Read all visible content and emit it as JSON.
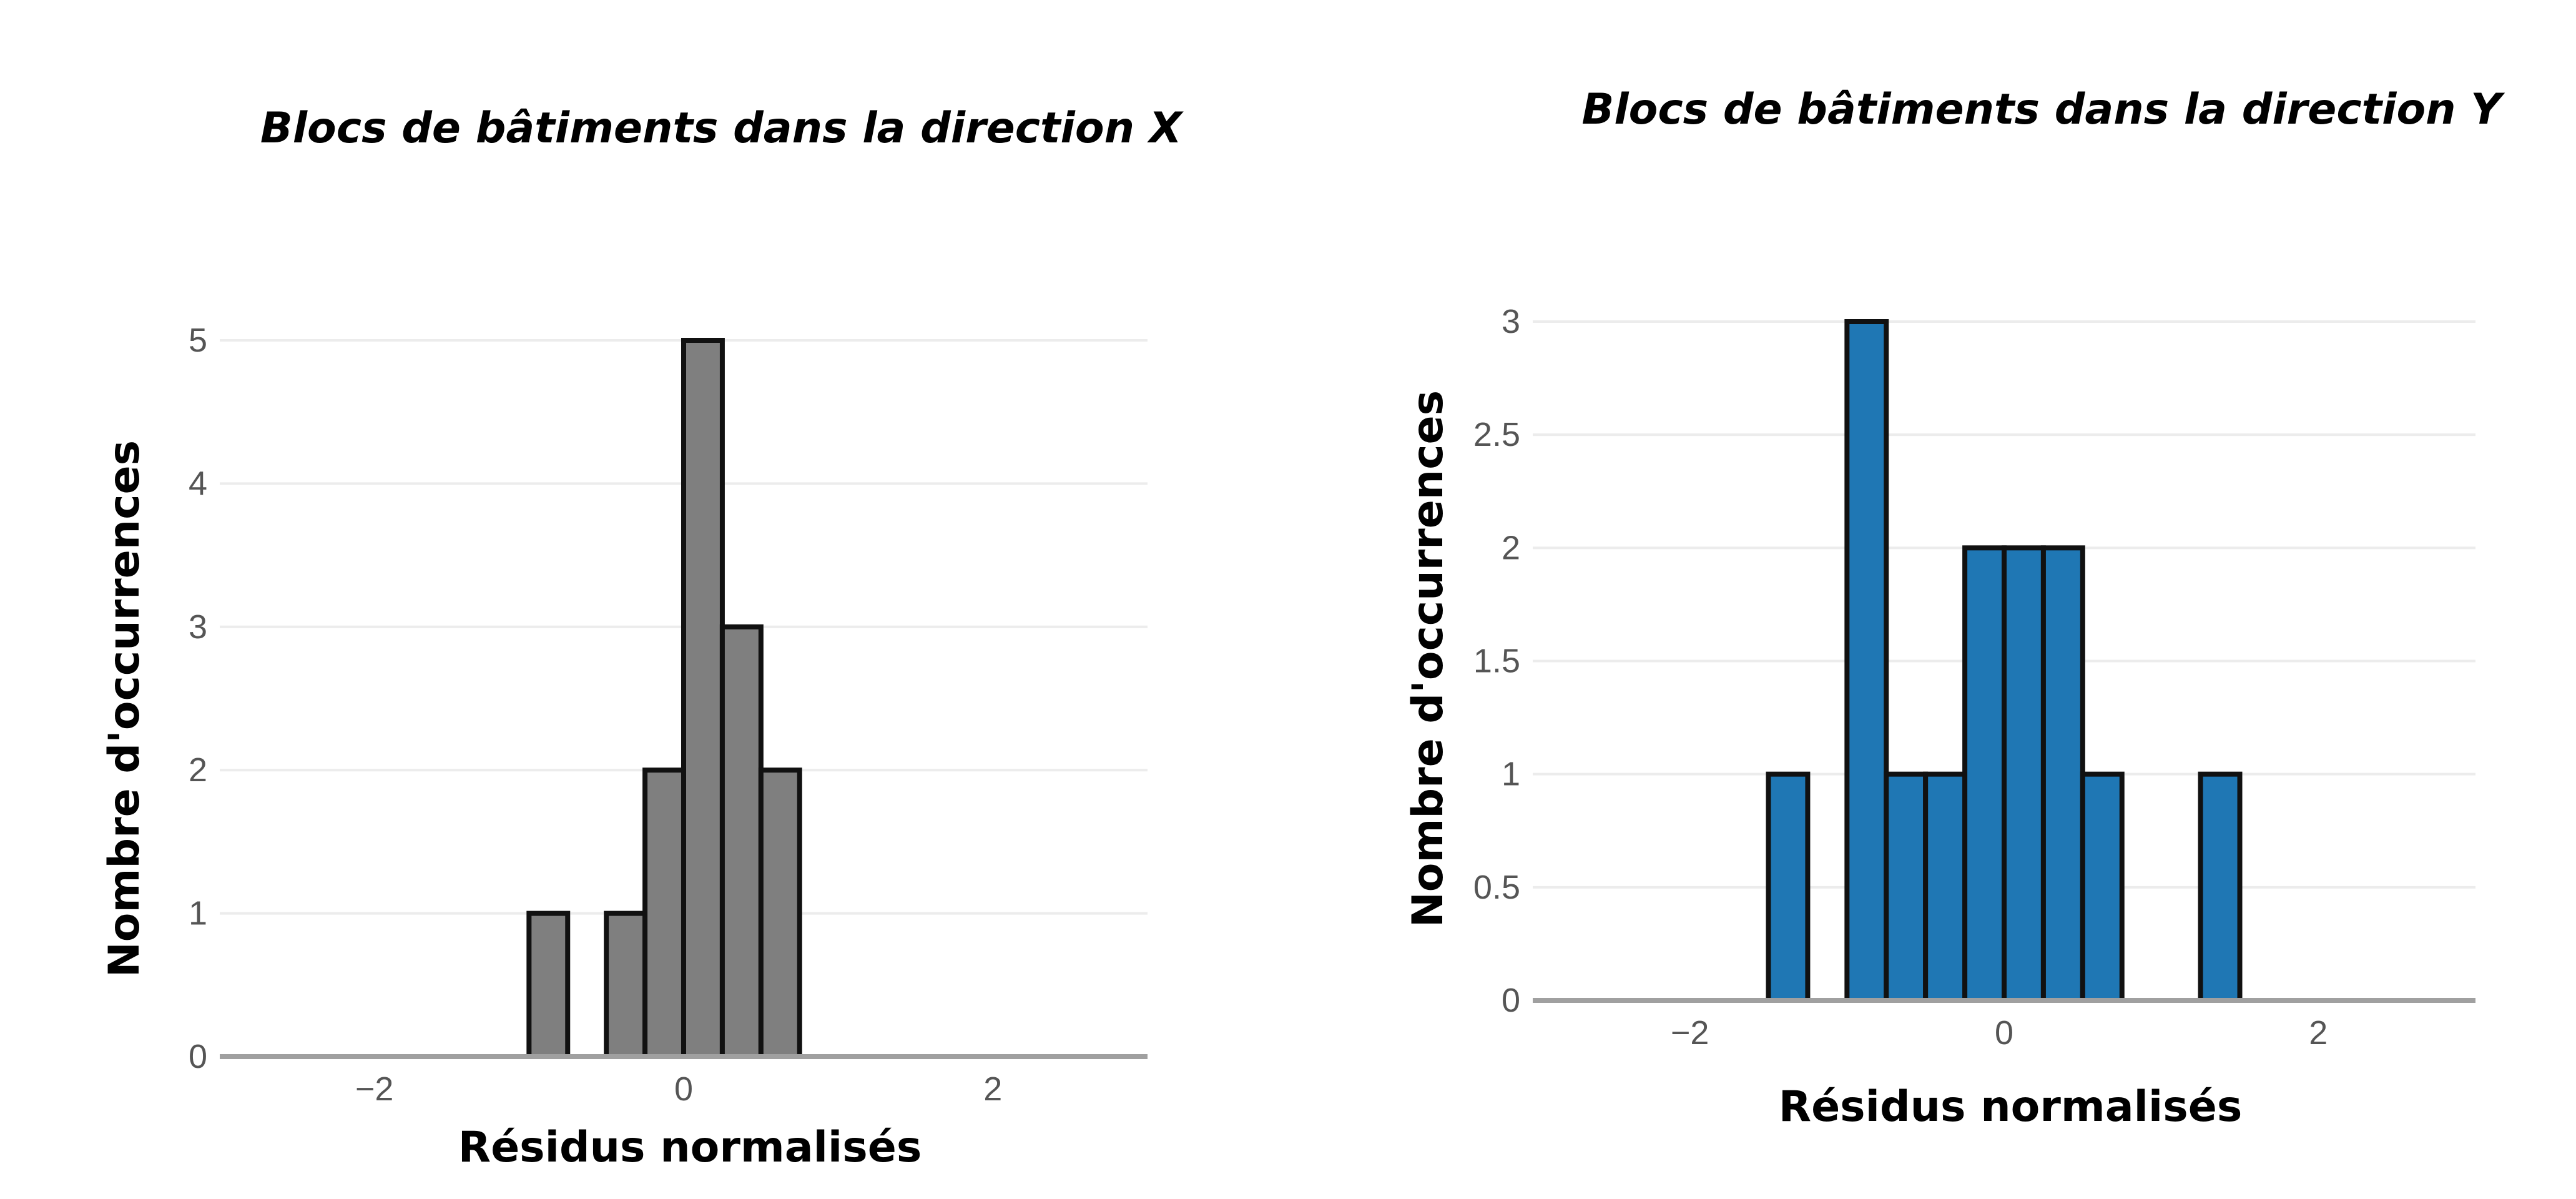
{
  "chart_data": [
    {
      "type": "bar",
      "title": "Blocs de bâtiments dans la direction X",
      "xlabel": "Résidus normalisés",
      "ylabel": "Nombre d'occurrences",
      "xlim": [
        -3,
        3
      ],
      "ylim": [
        0,
        5
      ],
      "xticks": [
        -2,
        0,
        2
      ],
      "yticks": [
        0,
        1,
        2,
        3,
        4,
        5
      ],
      "xtick_labels": [
        "−2",
        "0",
        "2"
      ],
      "ytick_labels": [
        "0",
        "1",
        "2",
        "3",
        "4",
        "5"
      ],
      "grid": true,
      "bar_color": "#7f7f7f",
      "edge_color": "#111111",
      "bins": [
        {
          "x0": -1.0,
          "x1": -0.75,
          "count": 1
        },
        {
          "x0": -0.5,
          "x1": -0.25,
          "count": 1
        },
        {
          "x0": -0.25,
          "x1": 0.0,
          "count": 2
        },
        {
          "x0": 0.0,
          "x1": 0.25,
          "count": 5
        },
        {
          "x0": 0.25,
          "x1": 0.5,
          "count": 3
        },
        {
          "x0": 0.5,
          "x1": 0.75,
          "count": 2
        }
      ]
    },
    {
      "type": "bar",
      "title": "Blocs de bâtiments dans la direction Y",
      "xlabel": "Résidus normalisés",
      "ylabel": "Nombre d'occurrences",
      "xlim": [
        -3,
        3
      ],
      "ylim": [
        0,
        3
      ],
      "xticks": [
        -2,
        0,
        2
      ],
      "yticks": [
        0,
        0.5,
        1,
        1.5,
        2,
        2.5,
        3
      ],
      "xtick_labels": [
        "−2",
        "0",
        "2"
      ],
      "ytick_labels": [
        "0",
        "0.5",
        "1",
        "1.5",
        "2",
        "2.5",
        "3"
      ],
      "grid": true,
      "bar_color": "#1f77b4",
      "edge_color": "#111111",
      "bins": [
        {
          "x0": -1.5,
          "x1": -1.25,
          "count": 1
        },
        {
          "x0": -1.0,
          "x1": -0.75,
          "count": 3
        },
        {
          "x0": -0.75,
          "x1": -0.5,
          "count": 1
        },
        {
          "x0": -0.5,
          "x1": -0.25,
          "count": 1
        },
        {
          "x0": -0.25,
          "x1": 0.0,
          "count": 2
        },
        {
          "x0": 0.0,
          "x1": 0.25,
          "count": 2
        },
        {
          "x0": 0.25,
          "x1": 0.5,
          "count": 2
        },
        {
          "x0": 0.5,
          "x1": 0.75,
          "count": 1
        },
        {
          "x0": 1.25,
          "x1": 1.5,
          "count": 1
        }
      ]
    }
  ]
}
